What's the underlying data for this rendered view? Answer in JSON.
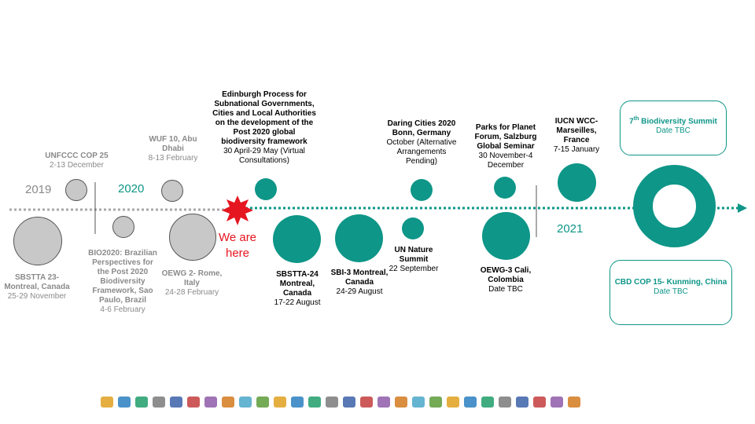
{
  "colors": {
    "teal": "#0e9688",
    "gray": "#c8c8c8",
    "marker": "#e5161f"
  },
  "years": {
    "y2019": "2019",
    "y2020": "2020",
    "y2021": "2021"
  },
  "we_are_here": {
    "line1": "We are",
    "line2": "here"
  },
  "events": {
    "sbstta23": {
      "title": "SBSTTA 23- Montreal, Canada",
      "date": "25-29 November"
    },
    "unfccc": {
      "title": "UNFCCC COP 25",
      "date": "2-13 December"
    },
    "bio2020": {
      "title": "BIO2020: Brazilian Perspectives for the Post 2020 Biodiversity Framework, Sao Paulo, Brazil",
      "date": "4-6 February"
    },
    "wuf10": {
      "title": "WUF 10, Abu Dhabi",
      "date": "8-13 February"
    },
    "oewg2": {
      "title": "OEWG 2- Rome, Italy",
      "date": "24-28 February"
    },
    "edinburgh": {
      "title": "Edinburgh Process for Subnational Governments, Cities and Local Authorities on the development of the Post 2020 global biodiversity framework",
      "date": "30 April-29 May (Virtual Consultations)"
    },
    "sbstta24": {
      "title": "SBSTTA-24 Montreal, Canada",
      "date": "17-22 August"
    },
    "sbi3": {
      "title": "SBI-3 Montreal, Canada",
      "date": "24-29 August"
    },
    "daring": {
      "title": "Daring Cities 2020 Bonn, Germany",
      "date": "October (Alternative Arrangements Pending)"
    },
    "un_nature": {
      "title": "UN Nature Summit",
      "date": "22 September"
    },
    "parks": {
      "title": "Parks for Planet Forum, Salzburg Global Seminar",
      "date": "30 November-4 December"
    },
    "oewg3": {
      "title": "OEWG-3 Cali, Colombia",
      "date": "Date TBC"
    },
    "iucn": {
      "title": "IUCN WCC- Marseilles, France",
      "date": "7-15 January"
    }
  },
  "boxes": {
    "summit": {
      "sup": "th",
      "num": "7",
      "title": " Biodiversity Summit",
      "date": "Date TBC"
    },
    "cop15": {
      "title": "CBD COP 15- Kunming, China",
      "date": "Date TBC"
    }
  },
  "partner_logos": [
    "uclg-cglu-logo",
    "partner-logo-2",
    "partner-logo-3",
    "partner-logo-4",
    "iclei-logo",
    "partner-logo-6",
    "regions4-logo",
    "partner-logo-8",
    "partner-logo-9",
    "partner-logo-10",
    "metropolis-logo",
    "uclg-logo",
    "partner-logo-13",
    "partner-logo-14",
    "partner-logo-15",
    "partner-logo-16",
    "partner-logo-17",
    "partner-logo-18",
    "partner-logo-19",
    "partner-logo-20",
    "partner-logo-21",
    "partner-logo-22",
    "partner-logo-23",
    "partner-logo-24",
    "partner-logo-25",
    "partner-logo-26",
    "aer-logo",
    "partner-logo-28"
  ]
}
